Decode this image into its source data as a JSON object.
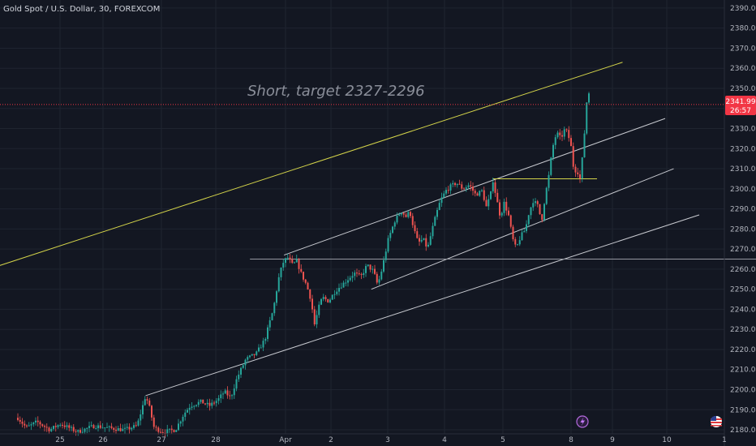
{
  "chart_data": {
    "type": "candlestick",
    "title": "Gold Spot / U.S. Dollar, 30, FOREXCOM",
    "annotation": "Short, target 2327-2296",
    "x_ticks": [
      "25",
      "26",
      "27",
      "28",
      "Apr",
      "2",
      "3",
      "4",
      "5",
      "8",
      "9",
      "10",
      "1"
    ],
    "y_ticks": [
      2180,
      2190,
      2200,
      2210,
      2220,
      2230,
      2240,
      2250,
      2260,
      2270,
      2280,
      2290,
      2300,
      2310,
      2320,
      2330,
      2340,
      2350,
      2360,
      2370,
      2380,
      2390
    ],
    "y_range": [
      2178,
      2394
    ],
    "current_price": {
      "price": "2341.99",
      "countdown": "26:57"
    },
    "colors": {
      "up": "#26a69a",
      "down": "#ef5350",
      "background": "#131722",
      "grid": "#1f2430",
      "price_tag": "#f23645",
      "resistance": "#d4d44a",
      "channel": "#c8cad0"
    },
    "price_path": [
      {
        "day": 24.0,
        "price": 2186
      },
      {
        "day": 24.2,
        "price": 2181
      },
      {
        "day": 24.45,
        "price": 2184
      },
      {
        "day": 24.75,
        "price": 2180
      },
      {
        "day": 25.0,
        "price": 2183
      },
      {
        "day": 25.4,
        "price": 2179
      },
      {
        "day": 25.8,
        "price": 2182
      },
      {
        "day": 26.1,
        "price": 2181
      },
      {
        "day": 26.5,
        "price": 2180
      },
      {
        "day": 26.8,
        "price": 2182
      },
      {
        "day": 27.0,
        "price": 2197
      },
      {
        "day": 27.08,
        "price": 2192
      },
      {
        "day": 27.2,
        "price": 2181
      },
      {
        "day": 27.4,
        "price": 2179
      },
      {
        "day": 27.7,
        "price": 2180
      },
      {
        "day": 27.9,
        "price": 2188
      },
      {
        "day": 28.05,
        "price": 2192
      },
      {
        "day": 28.3,
        "price": 2194
      },
      {
        "day": 28.5,
        "price": 2192
      },
      {
        "day": 28.7,
        "price": 2195
      },
      {
        "day": 28.85,
        "price": 2199
      },
      {
        "day": 29.0,
        "price": 2196
      },
      {
        "day": 29.15,
        "price": 2206
      },
      {
        "day": 29.35,
        "price": 2215
      },
      {
        "day": 29.6,
        "price": 2218
      },
      {
        "day": 29.8,
        "price": 2225
      },
      {
        "day": 30.0,
        "price": 2240
      },
      {
        "day": 30.12,
        "price": 2255
      },
      {
        "day": 30.22,
        "price": 2263
      },
      {
        "day": 30.33,
        "price": 2266
      },
      {
        "day": 30.45,
        "price": 2262
      },
      {
        "day": 30.55,
        "price": 2264
      },
      {
        "day": 30.65,
        "price": 2258
      },
      {
        "day": 30.78,
        "price": 2252
      },
      {
        "day": 30.88,
        "price": 2245
      },
      {
        "day": 30.97,
        "price": 2232
      },
      {
        "day": 31.05,
        "price": 2240
      },
      {
        "day": 31.15,
        "price": 2246
      },
      {
        "day": 31.3,
        "price": 2244
      },
      {
        "day": 31.45,
        "price": 2249
      },
      {
        "day": 31.6,
        "price": 2252
      },
      {
        "day": 31.75,
        "price": 2255
      },
      {
        "day": 31.9,
        "price": 2258
      },
      {
        "day": 32.05,
        "price": 2256
      },
      {
        "day": 32.2,
        "price": 2262
      },
      {
        "day": 32.35,
        "price": 2259
      },
      {
        "day": 32.45,
        "price": 2252
      },
      {
        "day": 32.55,
        "price": 2260
      },
      {
        "day": 32.7,
        "price": 2275
      },
      {
        "day": 32.85,
        "price": 2284
      },
      {
        "day": 33.0,
        "price": 2289
      },
      {
        "day": 33.12,
        "price": 2286
      },
      {
        "day": 33.2,
        "price": 2289
      },
      {
        "day": 33.3,
        "price": 2280
      },
      {
        "day": 33.4,
        "price": 2273
      },
      {
        "day": 33.52,
        "price": 2275
      },
      {
        "day": 33.62,
        "price": 2270
      },
      {
        "day": 33.72,
        "price": 2279
      },
      {
        "day": 33.82,
        "price": 2287
      },
      {
        "day": 33.92,
        "price": 2294
      },
      {
        "day": 34.05,
        "price": 2299
      },
      {
        "day": 34.15,
        "price": 2301
      },
      {
        "day": 34.3,
        "price": 2303
      },
      {
        "day": 34.45,
        "price": 2300
      },
      {
        "day": 34.6,
        "price": 2302
      },
      {
        "day": 34.75,
        "price": 2297
      },
      {
        "day": 34.9,
        "price": 2299
      },
      {
        "day": 35.0,
        "price": 2291
      },
      {
        "day": 35.1,
        "price": 2297
      },
      {
        "day": 35.15,
        "price": 2305
      },
      {
        "day": 35.25,
        "price": 2294
      },
      {
        "day": 35.33,
        "price": 2286
      },
      {
        "day": 35.42,
        "price": 2293
      },
      {
        "day": 35.52,
        "price": 2287
      },
      {
        "day": 35.62,
        "price": 2275
      },
      {
        "day": 35.7,
        "price": 2270
      },
      {
        "day": 35.8,
        "price": 2276
      },
      {
        "day": 35.92,
        "price": 2280
      },
      {
        "day": 36.0,
        "price": 2288
      },
      {
        "day": 36.1,
        "price": 2294
      },
      {
        "day": 36.2,
        "price": 2292
      },
      {
        "day": 36.3,
        "price": 2284
      },
      {
        "day": 36.38,
        "price": 2296
      },
      {
        "day": 36.48,
        "price": 2308
      },
      {
        "day": 36.55,
        "price": 2320
      },
      {
        "day": 36.65,
        "price": 2328
      },
      {
        "day": 36.75,
        "price": 2325
      },
      {
        "day": 36.85,
        "price": 2330
      },
      {
        "day": 36.92,
        "price": 2327
      },
      {
        "day": 37.0,
        "price": 2320
      },
      {
        "day": 37.06,
        "price": 2308
      },
      {
        "day": 37.12,
        "price": 2310
      },
      {
        "day": 37.2,
        "price": 2305
      },
      {
        "day": 37.27,
        "price": 2318
      },
      {
        "day": 37.33,
        "price": 2335
      },
      {
        "day": 37.38,
        "price": 2350
      },
      {
        "day": 37.42,
        "price": 2347
      },
      {
        "day": 37.45,
        "price": 2341.99
      }
    ],
    "trend_lines": [
      {
        "name": "resistance-line",
        "color": "#d4d44a",
        "from": {
          "day": 19.7,
          "price": 2235
        },
        "to": {
          "day": 38.2,
          "price": 2363
        }
      },
      {
        "name": "channel-upper-line",
        "color": "#c8cad0",
        "from": {
          "day": 30.25,
          "price": 2267
        },
        "to": {
          "day": 39.2,
          "price": 2335
        }
      },
      {
        "name": "channel-middle-line",
        "color": "#c8cad0",
        "from": {
          "day": 32.3,
          "price": 2250
        },
        "to": {
          "day": 39.4,
          "price": 2310
        }
      },
      {
        "name": "support-line",
        "color": "#c8cad0",
        "from": {
          "day": 27.0,
          "price": 2197
        },
        "to": {
          "day": 40.0,
          "price": 2287
        }
      },
      {
        "name": "horizontal-support-line",
        "color": "#9598a1",
        "from": {
          "day": 29.45,
          "price": 2265
        },
        "to": {
          "day": 42.02,
          "price": 2265
        }
      },
      {
        "name": "breakout-level-line",
        "color": "#d4d44a",
        "from": {
          "day": 35.15,
          "price": 2305
        },
        "to": {
          "day": 37.6,
          "price": 2305
        }
      }
    ],
    "reference_line": {
      "price": 2341.99,
      "color": "#f23645"
    }
  }
}
